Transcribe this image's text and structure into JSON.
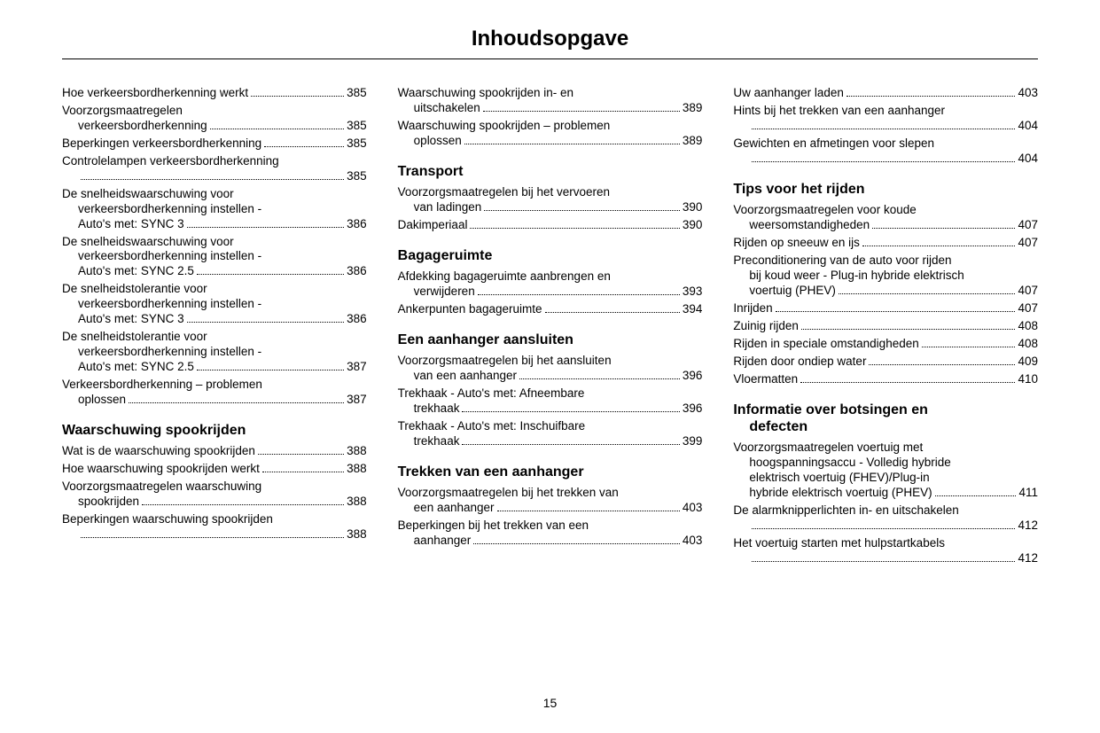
{
  "pageTitle": "Inhoudsopgave",
  "pageNumber": "15",
  "columns": [
    {
      "groups": [
        {
          "heading": null,
          "entries": [
            {
              "lines": [
                "Hoe verkeersbordherkenning werkt"
              ],
              "page": "385"
            },
            {
              "lines": [
                "Voorzorgsmaatregelen",
                "verkeersbordherkenning"
              ],
              "page": "385"
            },
            {
              "lines": [
                "Beperkingen verkeersbordherkenning"
              ],
              "page": "385"
            },
            {
              "lines": [
                "Controlelampen verkeersbordherkenning",
                ""
              ],
              "page": "385"
            },
            {
              "lines": [
                "De snelheidswaarschuwing voor",
                "verkeersbordherkenning instellen -",
                "Auto's met: SYNC 3"
              ],
              "page": "386"
            },
            {
              "lines": [
                "De snelheidswaarschuwing voor",
                "verkeersbordherkenning instellen -",
                "Auto's met: SYNC 2.5"
              ],
              "page": "386"
            },
            {
              "lines": [
                "De snelheidstolerantie voor",
                "verkeersbordherkenning instellen -",
                "Auto's met: SYNC 3"
              ],
              "page": "386"
            },
            {
              "lines": [
                "De snelheidstolerantie voor",
                "verkeersbordherkenning instellen -",
                "Auto's met: SYNC 2.5"
              ],
              "page": "387"
            },
            {
              "lines": [
                "Verkeersbordherkenning – problemen",
                "oplossen"
              ],
              "page": "387"
            }
          ]
        },
        {
          "heading": "Waarschuwing spookrijden",
          "entries": [
            {
              "lines": [
                "Wat is de waarschuwing spookrijden"
              ],
              "page": "388"
            },
            {
              "lines": [
                "Hoe waarschuwing spookrijden werkt"
              ],
              "page": "388"
            },
            {
              "lines": [
                "Voorzorgsmaatregelen waarschuwing",
                "spookrijden"
              ],
              "page": "388"
            },
            {
              "lines": [
                "Beperkingen waarschuwing spookrijden",
                ""
              ],
              "page": "388"
            }
          ]
        }
      ]
    },
    {
      "groups": [
        {
          "heading": null,
          "entries": [
            {
              "lines": [
                "Waarschuwing spookrijden in- en",
                "uitschakelen"
              ],
              "page": "389"
            },
            {
              "lines": [
                "Waarschuwing spookrijden – problemen",
                "oplossen"
              ],
              "page": "389"
            }
          ]
        },
        {
          "heading": "Transport",
          "entries": [
            {
              "lines": [
                "Voorzorgsmaatregelen bij het vervoeren",
                "van ladingen"
              ],
              "page": "390"
            },
            {
              "lines": [
                "Dakimperiaal"
              ],
              "page": "390"
            }
          ]
        },
        {
          "heading": "Bagageruimte",
          "entries": [
            {
              "lines": [
                "Afdekking bagageruimte aanbrengen en",
                "verwijderen"
              ],
              "page": "393"
            },
            {
              "lines": [
                "Ankerpunten bagageruimte"
              ],
              "page": "394"
            }
          ]
        },
        {
          "heading": "Een aanhanger aansluiten",
          "entries": [
            {
              "lines": [
                "Voorzorgsmaatregelen bij het aansluiten",
                "van een aanhanger"
              ],
              "page": "396"
            },
            {
              "lines": [
                "Trekhaak - Auto's met: Afneembare",
                "trekhaak"
              ],
              "page": "396"
            },
            {
              "lines": [
                "Trekhaak - Auto's met: Inschuifbare",
                "trekhaak"
              ],
              "page": "399"
            }
          ]
        },
        {
          "heading": "Trekken van een aanhanger",
          "entries": [
            {
              "lines": [
                "Voorzorgsmaatregelen bij het trekken van",
                "een aanhanger"
              ],
              "page": "403"
            },
            {
              "lines": [
                "Beperkingen bij het trekken van een",
                "aanhanger"
              ],
              "page": "403"
            }
          ]
        }
      ]
    },
    {
      "groups": [
        {
          "heading": null,
          "entries": [
            {
              "lines": [
                "Uw aanhanger laden"
              ],
              "page": "403"
            },
            {
              "lines": [
                "Hints bij het trekken van een aanhanger",
                ""
              ],
              "page": "404"
            },
            {
              "lines": [
                "Gewichten en afmetingen voor slepen",
                ""
              ],
              "page": "404"
            }
          ]
        },
        {
          "heading": "Tips voor het rijden",
          "entries": [
            {
              "lines": [
                "Voorzorgsmaatregelen voor koude",
                "weersomstandigheden"
              ],
              "page": "407"
            },
            {
              "lines": [
                "Rijden op sneeuw en ijs"
              ],
              "page": "407"
            },
            {
              "lines": [
                "Preconditionering van de auto voor rijden",
                "bij koud weer - Plug-in hybride elektrisch",
                "voertuig (PHEV)"
              ],
              "page": "407"
            },
            {
              "lines": [
                "Inrijden"
              ],
              "page": "407"
            },
            {
              "lines": [
                "Zuinig rijden"
              ],
              "page": "408"
            },
            {
              "lines": [
                "Rijden in speciale omstandigheden"
              ],
              "page": "408"
            },
            {
              "lines": [
                "Rijden door ondiep water"
              ],
              "page": "409"
            },
            {
              "lines": [
                "Vloermatten"
              ],
              "page": "410"
            }
          ]
        },
        {
          "heading": "Informatie over botsingen en defecten",
          "headingLines": [
            "Informatie over botsingen en",
            "defecten"
          ],
          "entries": [
            {
              "lines": [
                "Voorzorgsmaatregelen voertuig met",
                "hoogspanningsaccu - Volledig hybride",
                "elektrisch voertuig (FHEV)/Plug-in",
                "hybride elektrisch voertuig (PHEV)"
              ],
              "page": "411"
            },
            {
              "lines": [
                "De alarmknipperlichten in- en uitschakelen",
                ""
              ],
              "page": "412"
            },
            {
              "lines": [
                "Het voertuig starten met hulpstartkabels",
                ""
              ],
              "page": "412"
            }
          ]
        }
      ]
    }
  ]
}
